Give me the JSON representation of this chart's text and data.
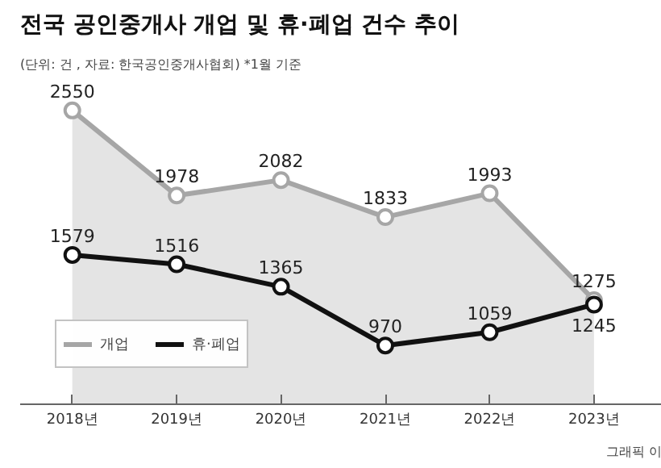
{
  "chart_data": {
    "type": "line",
    "title": "전국 공인중개사 개업 및 휴·폐업 건수 추이",
    "subtitle": "(단위: 건 , 자료: 한국공인중개사협회) *1월 기준",
    "categories": [
      "2018년",
      "2019년",
      "2020년",
      "2021년",
      "2022년",
      "2023년"
    ],
    "series": [
      {
        "name": "개업",
        "type": "area",
        "color": "#a6a6a6",
        "values": [
          2550,
          1978,
          2082,
          1833,
          1993,
          1275
        ]
      },
      {
        "name": "휴·폐업",
        "color": "#111111",
        "values": [
          1579,
          1516,
          1365,
          970,
          1059,
          1245
        ]
      }
    ],
    "tick_labels": "x",
    "grid": false,
    "legend": "bottom left",
    "marker": "circle",
    "data_labels": true,
    "annotations": [
      "그래픽 이"
    ]
  }
}
